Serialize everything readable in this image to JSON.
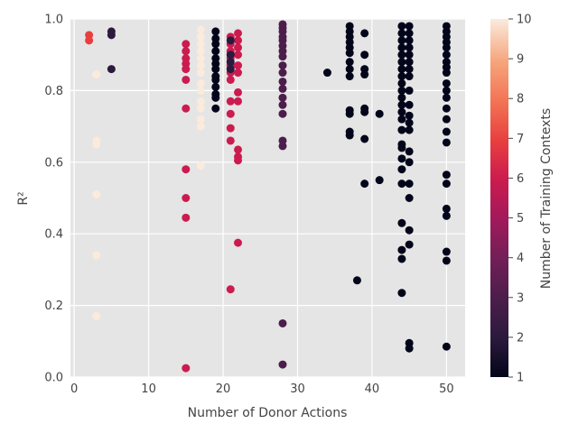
{
  "chart_data": {
    "type": "scatter",
    "title": "",
    "xlabel": "Number of Donor Actions",
    "ylabel": "R²",
    "xlim": [
      -0.5,
      52.5
    ],
    "ylim": [
      0.0,
      1.0
    ],
    "xticks": [
      0,
      10,
      20,
      30,
      40,
      50
    ],
    "yticks": [
      0.0,
      0.2,
      0.4,
      0.6,
      0.8,
      1.0
    ],
    "grid": true,
    "colorbar": {
      "label": "Number of Training Contexts",
      "range": [
        1,
        10
      ],
      "ticks": [
        1,
        2,
        3,
        4,
        5,
        6,
        7,
        8,
        9,
        10
      ],
      "colormap": "rocket"
    },
    "points": [
      {
        "x": 2,
        "y": 0.955,
        "c": 7
      },
      {
        "x": 2,
        "y": 0.94,
        "c": 7
      },
      {
        "x": 3,
        "y": 0.845,
        "c": 10
      },
      {
        "x": 3,
        "y": 0.66,
        "c": 10
      },
      {
        "x": 3,
        "y": 0.65,
        "c": 10
      },
      {
        "x": 3,
        "y": 0.51,
        "c": 10
      },
      {
        "x": 3,
        "y": 0.34,
        "c": 10
      },
      {
        "x": 3,
        "y": 0.17,
        "c": 10
      },
      {
        "x": 5,
        "y": 0.965,
        "c": 2
      },
      {
        "x": 5,
        "y": 0.955,
        "c": 2
      },
      {
        "x": 5,
        "y": 0.86,
        "c": 2
      },
      {
        "x": 15,
        "y": 0.93,
        "c": 6
      },
      {
        "x": 15,
        "y": 0.91,
        "c": 6
      },
      {
        "x": 15,
        "y": 0.89,
        "c": 6
      },
      {
        "x": 15,
        "y": 0.875,
        "c": 6
      },
      {
        "x": 15,
        "y": 0.86,
        "c": 6
      },
      {
        "x": 15,
        "y": 0.83,
        "c": 6
      },
      {
        "x": 15,
        "y": 0.75,
        "c": 6
      },
      {
        "x": 15,
        "y": 0.58,
        "c": 6
      },
      {
        "x": 15,
        "y": 0.5,
        "c": 6
      },
      {
        "x": 15,
        "y": 0.445,
        "c": 6
      },
      {
        "x": 15,
        "y": 0.025,
        "c": 6
      },
      {
        "x": 17,
        "y": 0.97,
        "c": 10
      },
      {
        "x": 17,
        "y": 0.95,
        "c": 10
      },
      {
        "x": 17,
        "y": 0.93,
        "c": 10
      },
      {
        "x": 17,
        "y": 0.91,
        "c": 10
      },
      {
        "x": 17,
        "y": 0.89,
        "c": 10
      },
      {
        "x": 17,
        "y": 0.87,
        "c": 10
      },
      {
        "x": 17,
        "y": 0.85,
        "c": 10
      },
      {
        "x": 17,
        "y": 0.82,
        "c": 10
      },
      {
        "x": 17,
        "y": 0.8,
        "c": 10
      },
      {
        "x": 17,
        "y": 0.77,
        "c": 10
      },
      {
        "x": 17,
        "y": 0.75,
        "c": 10
      },
      {
        "x": 17,
        "y": 0.72,
        "c": 10
      },
      {
        "x": 17,
        "y": 0.7,
        "c": 10
      },
      {
        "x": 17,
        "y": 0.59,
        "c": 10
      },
      {
        "x": 19,
        "y": 0.965,
        "c": 1
      },
      {
        "x": 19,
        "y": 0.945,
        "c": 1
      },
      {
        "x": 19,
        "y": 0.93,
        "c": 1
      },
      {
        "x": 19,
        "y": 0.91,
        "c": 1
      },
      {
        "x": 19,
        "y": 0.89,
        "c": 1
      },
      {
        "x": 19,
        "y": 0.875,
        "c": 1
      },
      {
        "x": 19,
        "y": 0.86,
        "c": 1
      },
      {
        "x": 19,
        "y": 0.84,
        "c": 1
      },
      {
        "x": 19,
        "y": 0.83,
        "c": 1
      },
      {
        "x": 19,
        "y": 0.81,
        "c": 1
      },
      {
        "x": 19,
        "y": 0.79,
        "c": 1
      },
      {
        "x": 19,
        "y": 0.78,
        "c": 1
      },
      {
        "x": 19,
        "y": 0.75,
        "c": 1
      },
      {
        "x": 21,
        "y": 0.95,
        "c": 6
      },
      {
        "x": 21,
        "y": 0.93,
        "c": 6
      },
      {
        "x": 21,
        "y": 0.91,
        "c": 6
      },
      {
        "x": 21,
        "y": 0.89,
        "c": 6
      },
      {
        "x": 21,
        "y": 0.87,
        "c": 6
      },
      {
        "x": 21,
        "y": 0.85,
        "c": 6
      },
      {
        "x": 21,
        "y": 0.83,
        "c": 6
      },
      {
        "x": 21,
        "y": 0.77,
        "c": 6
      },
      {
        "x": 21,
        "y": 0.735,
        "c": 6
      },
      {
        "x": 21,
        "y": 0.695,
        "c": 6
      },
      {
        "x": 21,
        "y": 0.66,
        "c": 6
      },
      {
        "x": 21,
        "y": 0.245,
        "c": 6
      },
      {
        "x": 21,
        "y": 0.94,
        "c": 2
      },
      {
        "x": 21,
        "y": 0.9,
        "c": 2
      },
      {
        "x": 21,
        "y": 0.88,
        "c": 2
      },
      {
        "x": 21,
        "y": 0.86,
        "c": 2
      },
      {
        "x": 22,
        "y": 0.96,
        "c": 6
      },
      {
        "x": 22,
        "y": 0.94,
        "c": 6
      },
      {
        "x": 22,
        "y": 0.92,
        "c": 6
      },
      {
        "x": 22,
        "y": 0.9,
        "c": 6
      },
      {
        "x": 22,
        "y": 0.87,
        "c": 6
      },
      {
        "x": 22,
        "y": 0.85,
        "c": 6
      },
      {
        "x": 22,
        "y": 0.795,
        "c": 6
      },
      {
        "x": 22,
        "y": 0.77,
        "c": 6
      },
      {
        "x": 22,
        "y": 0.635,
        "c": 6
      },
      {
        "x": 22,
        "y": 0.615,
        "c": 6
      },
      {
        "x": 22,
        "y": 0.605,
        "c": 6
      },
      {
        "x": 22,
        "y": 0.375,
        "c": 6
      },
      {
        "x": 28,
        "y": 0.985,
        "c": 3
      },
      {
        "x": 28,
        "y": 0.975,
        "c": 3
      },
      {
        "x": 28,
        "y": 0.965,
        "c": 3
      },
      {
        "x": 28,
        "y": 0.95,
        "c": 3
      },
      {
        "x": 28,
        "y": 0.94,
        "c": 3
      },
      {
        "x": 28,
        "y": 0.925,
        "c": 3
      },
      {
        "x": 28,
        "y": 0.91,
        "c": 3
      },
      {
        "x": 28,
        "y": 0.895,
        "c": 3
      },
      {
        "x": 28,
        "y": 0.87,
        "c": 3
      },
      {
        "x": 28,
        "y": 0.85,
        "c": 3
      },
      {
        "x": 28,
        "y": 0.825,
        "c": 3
      },
      {
        "x": 28,
        "y": 0.805,
        "c": 3
      },
      {
        "x": 28,
        "y": 0.78,
        "c": 3
      },
      {
        "x": 28,
        "y": 0.76,
        "c": 3
      },
      {
        "x": 28,
        "y": 0.735,
        "c": 3
      },
      {
        "x": 28,
        "y": 0.66,
        "c": 3
      },
      {
        "x": 28,
        "y": 0.645,
        "c": 3
      },
      {
        "x": 28,
        "y": 0.15,
        "c": 3
      },
      {
        "x": 28,
        "y": 0.035,
        "c": 3
      },
      {
        "x": 34,
        "y": 0.85,
        "c": 1
      },
      {
        "x": 37,
        "y": 0.98,
        "c": 1
      },
      {
        "x": 37,
        "y": 0.965,
        "c": 1
      },
      {
        "x": 37,
        "y": 0.95,
        "c": 1
      },
      {
        "x": 37,
        "y": 0.935,
        "c": 1
      },
      {
        "x": 37,
        "y": 0.92,
        "c": 1
      },
      {
        "x": 37,
        "y": 0.905,
        "c": 1
      },
      {
        "x": 37,
        "y": 0.88,
        "c": 1
      },
      {
        "x": 37,
        "y": 0.86,
        "c": 1
      },
      {
        "x": 37,
        "y": 0.84,
        "c": 1
      },
      {
        "x": 37,
        "y": 0.745,
        "c": 1
      },
      {
        "x": 37,
        "y": 0.735,
        "c": 1
      },
      {
        "x": 37,
        "y": 0.685,
        "c": 1
      },
      {
        "x": 37,
        "y": 0.675,
        "c": 1
      },
      {
        "x": 38,
        "y": 0.27,
        "c": 1
      },
      {
        "x": 39,
        "y": 0.96,
        "c": 1
      },
      {
        "x": 39,
        "y": 0.9,
        "c": 1
      },
      {
        "x": 39,
        "y": 0.86,
        "c": 1
      },
      {
        "x": 39,
        "y": 0.845,
        "c": 1
      },
      {
        "x": 39,
        "y": 0.75,
        "c": 1
      },
      {
        "x": 39,
        "y": 0.74,
        "c": 1
      },
      {
        "x": 39,
        "y": 0.665,
        "c": 1
      },
      {
        "x": 39,
        "y": 0.54,
        "c": 1
      },
      {
        "x": 41,
        "y": 0.735,
        "c": 1
      },
      {
        "x": 41,
        "y": 0.55,
        "c": 1
      },
      {
        "x": 44,
        "y": 0.98,
        "c": 1
      },
      {
        "x": 44,
        "y": 0.96,
        "c": 1
      },
      {
        "x": 44,
        "y": 0.94,
        "c": 1
      },
      {
        "x": 44,
        "y": 0.92,
        "c": 1
      },
      {
        "x": 44,
        "y": 0.9,
        "c": 1
      },
      {
        "x": 44,
        "y": 0.88,
        "c": 1
      },
      {
        "x": 44,
        "y": 0.86,
        "c": 1
      },
      {
        "x": 44,
        "y": 0.84,
        "c": 1
      },
      {
        "x": 44,
        "y": 0.82,
        "c": 1
      },
      {
        "x": 44,
        "y": 0.8,
        "c": 1
      },
      {
        "x": 44,
        "y": 0.78,
        "c": 1
      },
      {
        "x": 44,
        "y": 0.76,
        "c": 1
      },
      {
        "x": 44,
        "y": 0.74,
        "c": 1
      },
      {
        "x": 44,
        "y": 0.72,
        "c": 1
      },
      {
        "x": 44,
        "y": 0.69,
        "c": 1
      },
      {
        "x": 44,
        "y": 0.65,
        "c": 1
      },
      {
        "x": 44,
        "y": 0.64,
        "c": 1
      },
      {
        "x": 44,
        "y": 0.61,
        "c": 1
      },
      {
        "x": 44,
        "y": 0.58,
        "c": 1
      },
      {
        "x": 44,
        "y": 0.54,
        "c": 1
      },
      {
        "x": 44,
        "y": 0.43,
        "c": 1
      },
      {
        "x": 44,
        "y": 0.355,
        "c": 1
      },
      {
        "x": 44,
        "y": 0.33,
        "c": 1
      },
      {
        "x": 44,
        "y": 0.235,
        "c": 1
      },
      {
        "x": 45,
        "y": 0.98,
        "c": 1
      },
      {
        "x": 45,
        "y": 0.96,
        "c": 1
      },
      {
        "x": 45,
        "y": 0.94,
        "c": 1
      },
      {
        "x": 45,
        "y": 0.92,
        "c": 1
      },
      {
        "x": 45,
        "y": 0.9,
        "c": 1
      },
      {
        "x": 45,
        "y": 0.88,
        "c": 1
      },
      {
        "x": 45,
        "y": 0.86,
        "c": 1
      },
      {
        "x": 45,
        "y": 0.84,
        "c": 1
      },
      {
        "x": 45,
        "y": 0.8,
        "c": 1
      },
      {
        "x": 45,
        "y": 0.76,
        "c": 1
      },
      {
        "x": 45,
        "y": 0.73,
        "c": 1
      },
      {
        "x": 45,
        "y": 0.71,
        "c": 1
      },
      {
        "x": 45,
        "y": 0.69,
        "c": 1
      },
      {
        "x": 45,
        "y": 0.63,
        "c": 1
      },
      {
        "x": 45,
        "y": 0.6,
        "c": 1
      },
      {
        "x": 45,
        "y": 0.54,
        "c": 1
      },
      {
        "x": 45,
        "y": 0.5,
        "c": 1
      },
      {
        "x": 45,
        "y": 0.41,
        "c": 1
      },
      {
        "x": 45,
        "y": 0.37,
        "c": 1
      },
      {
        "x": 45,
        "y": 0.095,
        "c": 1
      },
      {
        "x": 45,
        "y": 0.08,
        "c": 1
      },
      {
        "x": 50,
        "y": 0.98,
        "c": 1
      },
      {
        "x": 50,
        "y": 0.965,
        "c": 1
      },
      {
        "x": 50,
        "y": 0.95,
        "c": 1
      },
      {
        "x": 50,
        "y": 0.935,
        "c": 1
      },
      {
        "x": 50,
        "y": 0.92,
        "c": 1
      },
      {
        "x": 50,
        "y": 0.9,
        "c": 1
      },
      {
        "x": 50,
        "y": 0.88,
        "c": 1
      },
      {
        "x": 50,
        "y": 0.865,
        "c": 1
      },
      {
        "x": 50,
        "y": 0.85,
        "c": 1
      },
      {
        "x": 50,
        "y": 0.82,
        "c": 1
      },
      {
        "x": 50,
        "y": 0.8,
        "c": 1
      },
      {
        "x": 50,
        "y": 0.78,
        "c": 1
      },
      {
        "x": 50,
        "y": 0.75,
        "c": 1
      },
      {
        "x": 50,
        "y": 0.72,
        "c": 1
      },
      {
        "x": 50,
        "y": 0.685,
        "c": 1
      },
      {
        "x": 50,
        "y": 0.655,
        "c": 1
      },
      {
        "x": 50,
        "y": 0.565,
        "c": 1
      },
      {
        "x": 50,
        "y": 0.54,
        "c": 1
      },
      {
        "x": 50,
        "y": 0.47,
        "c": 1
      },
      {
        "x": 50,
        "y": 0.45,
        "c": 1
      },
      {
        "x": 50,
        "y": 0.35,
        "c": 1
      },
      {
        "x": 50,
        "y": 0.325,
        "c": 1
      },
      {
        "x": 50,
        "y": 0.085,
        "c": 1
      }
    ]
  }
}
